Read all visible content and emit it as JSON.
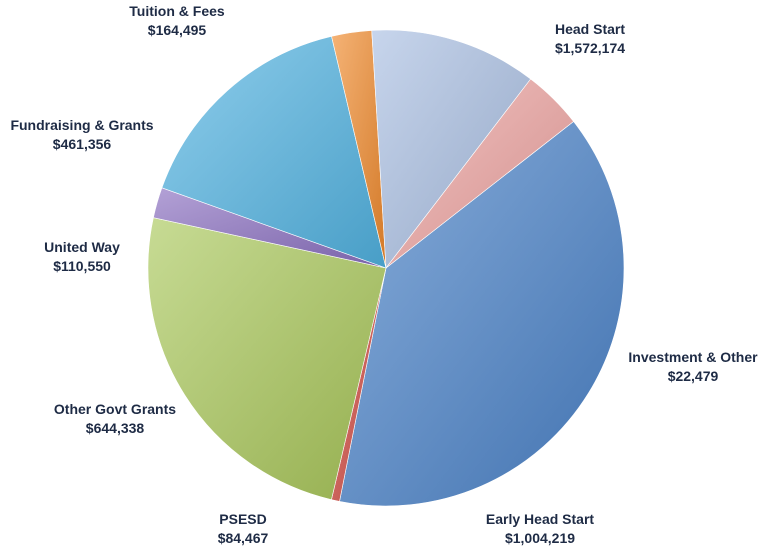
{
  "chart_data": {
    "type": "pie",
    "title": "",
    "slices": [
      {
        "label": "Head Start",
        "value": 1572174,
        "display": "$1,572,174",
        "color": "#4a82c8"
      },
      {
        "label": "Investment & Other",
        "value": 22479,
        "display": "$22,479",
        "color": "#d0483f"
      },
      {
        "label": "Early Head Start",
        "value": 1004219,
        "display": "$1,004,219",
        "color": "#a9c75a"
      },
      {
        "label": "PSESD",
        "value": 84467,
        "display": "$84,467",
        "color": "#8a6fc0"
      },
      {
        "label": "Other Govt Grants",
        "value": 644338,
        "display": "$644,338",
        "color": "#52b4e2"
      },
      {
        "label": "United Way",
        "value": 110550,
        "display": "$110,550",
        "color": "#f08a2c"
      },
      {
        "label": "Fundraising & Grants",
        "value": 461356,
        "display": "$461,356",
        "color": "#a9bfe2"
      },
      {
        "label": "Tuition & Fees",
        "value": 164495,
        "display": "$164,495",
        "color": "#eda3a0"
      }
    ]
  }
}
